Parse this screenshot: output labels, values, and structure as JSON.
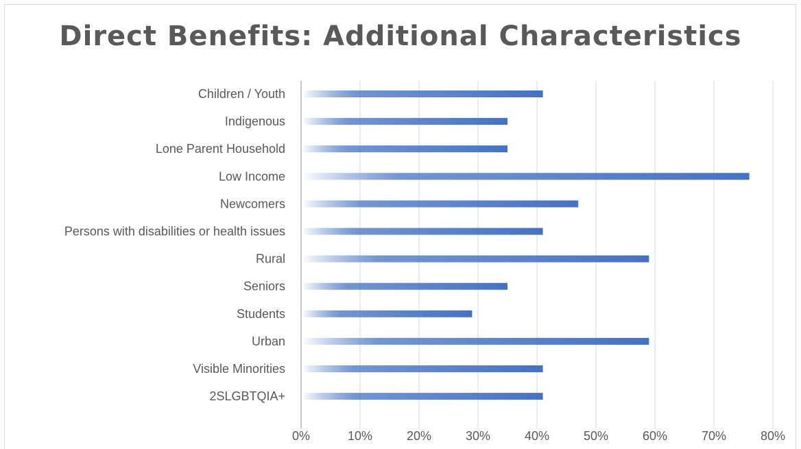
{
  "chart_data": {
    "type": "bar",
    "orientation": "horizontal",
    "title": "Direct Benefits: Additional Characteristics",
    "categories": [
      "Children / Youth",
      "Indigenous",
      "Lone Parent Household",
      "Low Income",
      "Newcomers",
      "Persons with disabilities or health issues",
      "Rural",
      "Seniors",
      "Students",
      "Urban",
      "Visible Minorities",
      "2SLGBTQIA+"
    ],
    "values": [
      41,
      35,
      35,
      76,
      47,
      41,
      59,
      35,
      29,
      59,
      41,
      41
    ],
    "value_unit": "%",
    "xlim": [
      0,
      80
    ],
    "x_ticks": [
      "0%",
      "10%",
      "20%",
      "30%",
      "40%",
      "50%",
      "60%",
      "70%",
      "80%"
    ],
    "xlabel": "",
    "ylabel": "",
    "grid": "vertical",
    "legend": "none",
    "bar_color": "#4472c4"
  }
}
